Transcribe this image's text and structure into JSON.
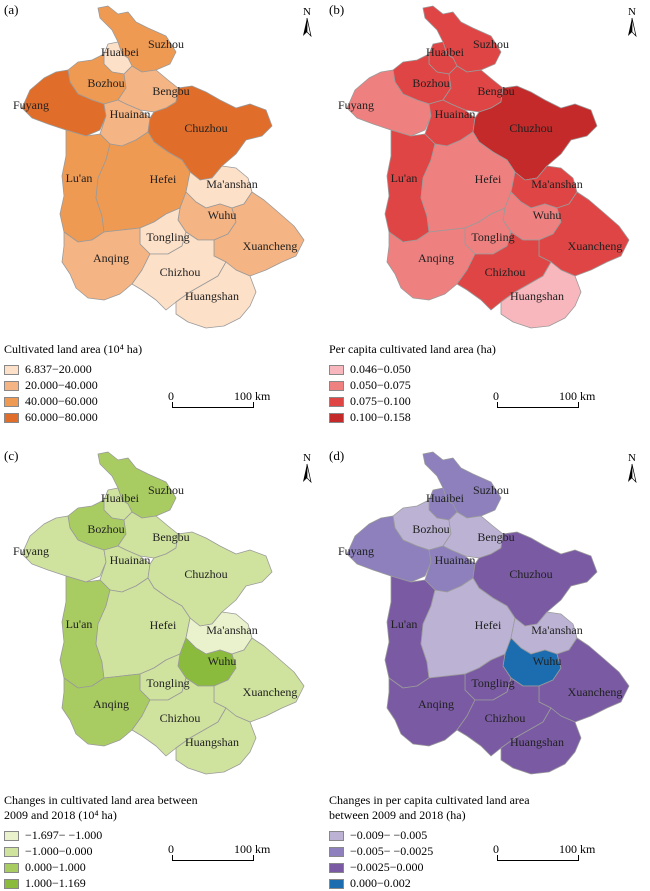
{
  "map_data": {
    "cities": [
      "Suzhou",
      "Huaibei",
      "Bozhou",
      "Bengbu",
      "Fuyang",
      "Huainan",
      "Chuzhou",
      "Lu'an",
      "Hefei",
      "Ma'anshan",
      "Wuhu",
      "Tongling",
      "Xuancheng",
      "Anqing",
      "Chizhou",
      "Huangshan"
    ],
    "north_symbol": "N",
    "scale_zero": "0",
    "scale_distance": "100 km"
  },
  "panels": [
    {
      "label": "(a)",
      "legend_title": "Cultivated land area (10⁴ ha)",
      "classes": [
        {
          "range": "6.837−20.000",
          "color": "#fde0c8"
        },
        {
          "range": "20.000−40.000",
          "color": "#f5b483"
        },
        {
          "range": "40.000−60.000",
          "color": "#ef9a52"
        },
        {
          "range": "60.000−80.000",
          "color": "#e06e2a"
        }
      ],
      "city_class": {
        "Suzhou": 2,
        "Huaibei": 0,
        "Bozhou": 2,
        "Bengbu": 1,
        "Fuyang": 3,
        "Huainan": 1,
        "Chuzhou": 3,
        "Lu'an": 2,
        "Hefei": 2,
        "Ma'anshan": 0,
        "Wuhu": 1,
        "Tongling": 0,
        "Xuancheng": 1,
        "Anqing": 1,
        "Chizhou": 0,
        "Huangshan": 0
      }
    },
    {
      "label": "(b)",
      "legend_title": "Per capita cultivated land area (ha)",
      "classes": [
        {
          "range": "0.046−0.050",
          "color": "#f7b7bd"
        },
        {
          "range": "0.050−0.075",
          "color": "#ef8080"
        },
        {
          "range": "0.075−0.100",
          "color": "#e04545"
        },
        {
          "range": "0.100−0.158",
          "color": "#c42a2a"
        }
      ],
      "city_class": {
        "Suzhou": 2,
        "Huaibei": 2,
        "Bozhou": 2,
        "Bengbu": 2,
        "Fuyang": 1,
        "Huainan": 2,
        "Chuzhou": 3,
        "Lu'an": 2,
        "Hefei": 1,
        "Ma'anshan": 2,
        "Wuhu": 1,
        "Tongling": 1,
        "Xuancheng": 2,
        "Anqing": 1,
        "Chizhou": 2,
        "Huangshan": 0
      }
    },
    {
      "label": "(c)",
      "legend_title": "Changes in cultivated land area between\n2009 and 2018 (10⁴ ha)",
      "classes": [
        {
          "range": "−1.697− −1.000",
          "color": "#eaf2cd"
        },
        {
          "range": "−1.000−0.000",
          "color": "#cfe39f"
        },
        {
          "range": "0.000−1.000",
          "color": "#a9cc62"
        },
        {
          "range": "1.000−1.169",
          "color": "#8bbb3c"
        }
      ],
      "city_class": {
        "Suzhou": 2,
        "Huaibei": 1,
        "Bozhou": 2,
        "Bengbu": 1,
        "Fuyang": 1,
        "Huainan": 1,
        "Chuzhou": 1,
        "Lu'an": 2,
        "Hefei": 1,
        "Ma'anshan": 0,
        "Wuhu": 3,
        "Tongling": 1,
        "Xuancheng": 1,
        "Anqing": 2,
        "Chizhou": 1,
        "Huangshan": 1
      }
    },
    {
      "label": "(d)",
      "legend_title": "Changes in per capita cultivated land area\nbetween 2009 and 2018 (ha)",
      "classes": [
        {
          "range": "−0.009− −0.005",
          "color": "#bcb3d4"
        },
        {
          "range": "−0.005− −0.0025",
          "color": "#8d80bd"
        },
        {
          "range": "−0.0025−0.000",
          "color": "#7a5ba3"
        },
        {
          "range": "0.000−0.002",
          "color": "#1c6db0"
        }
      ],
      "city_class": {
        "Suzhou": 1,
        "Huaibei": 1,
        "Bozhou": 0,
        "Bengbu": 0,
        "Fuyang": 1,
        "Huainan": 1,
        "Chuzhou": 2,
        "Lu'an": 2,
        "Hefei": 0,
        "Ma'anshan": 0,
        "Wuhu": 3,
        "Tongling": 2,
        "Xuancheng": 2,
        "Anqing": 2,
        "Chizhou": 2,
        "Huangshan": 2
      }
    }
  ]
}
